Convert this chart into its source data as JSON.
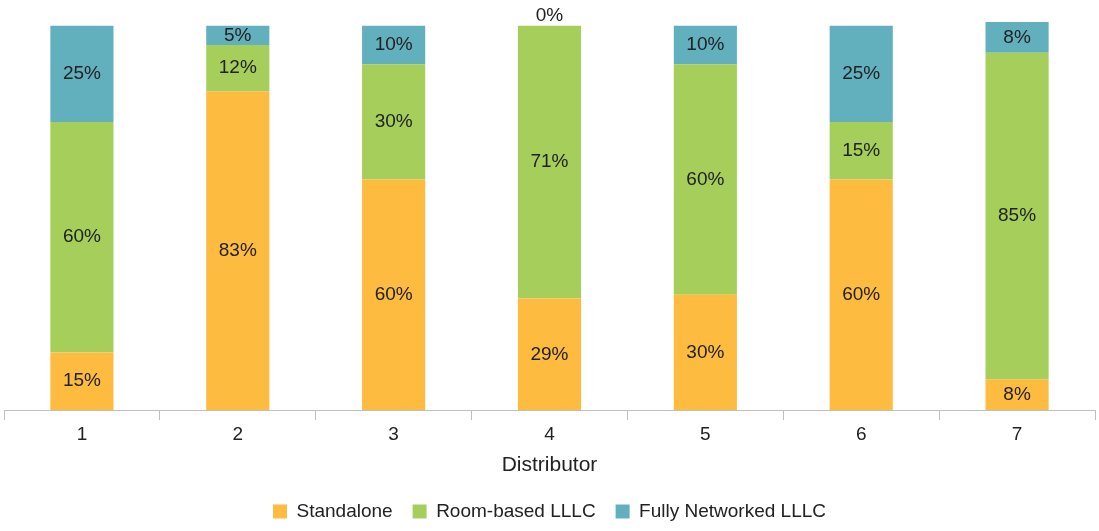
{
  "chart_data": {
    "type": "bar",
    "stacked": true,
    "xlabel": "Distributor",
    "categories": [
      "1",
      "2",
      "3",
      "4",
      "5",
      "6",
      "7"
    ],
    "series": [
      {
        "name": "Standalone",
        "color": "#fdbb40",
        "values": [
          15,
          83,
          60,
          29,
          30,
          60,
          8
        ],
        "value_labels": [
          "15%",
          "83%",
          "60%",
          "29%",
          "30%",
          "60%",
          "8%"
        ]
      },
      {
        "name": "Room-based LLLC",
        "color": "#a5cf5a",
        "values": [
          60,
          12,
          30,
          71,
          60,
          15,
          85
        ],
        "value_labels": [
          "60%",
          "12%",
          "30%",
          "71%",
          "60%",
          "15%",
          "85%"
        ]
      },
      {
        "name": "Fully Networked LLLC",
        "color": "#62afbe",
        "values": [
          25,
          5,
          10,
          0,
          10,
          25,
          8
        ],
        "value_labels": [
          "25%",
          "5%",
          "10%",
          "0%",
          "10%",
          "25%",
          "8%"
        ]
      }
    ],
    "legend": "bottom",
    "tick_labels": "x"
  }
}
